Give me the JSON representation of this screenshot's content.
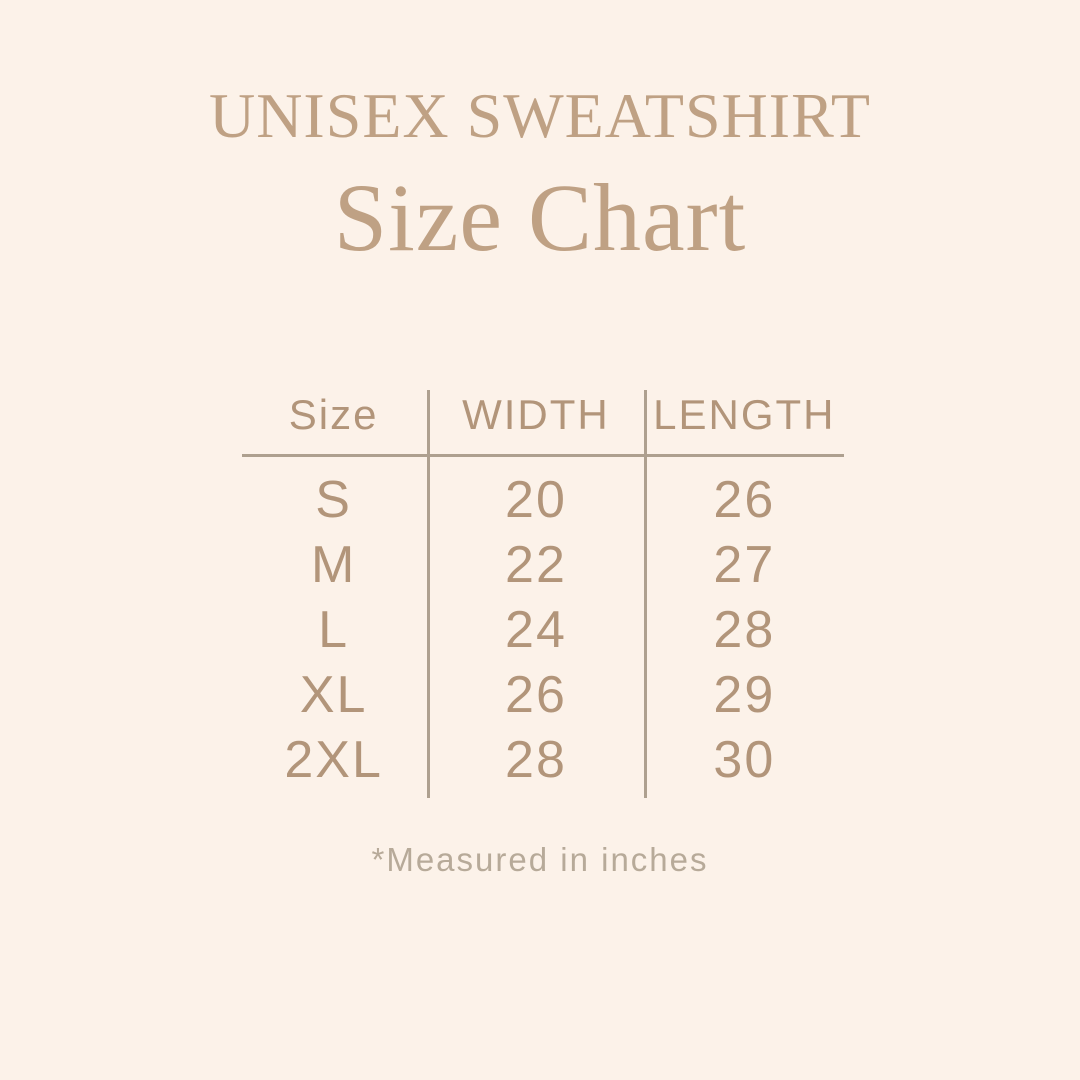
{
  "page": {
    "background_color": "#fcf2e9",
    "accent_color": "#bfa184",
    "table_text_color": "#b2957a",
    "line_color": "#aea08f",
    "footnote_color": "#b7aa99"
  },
  "header": {
    "title": "UNISEX SWEATSHIRT",
    "subtitle": "Size Chart"
  },
  "chart_data": {
    "type": "table",
    "title": "UNISEX SWEATSHIRT Size Chart",
    "columns": [
      "Size",
      "WIDTH",
      "LENGTH"
    ],
    "rows": [
      [
        "S",
        "20",
        "26"
      ],
      [
        "M",
        "22",
        "27"
      ],
      [
        "L",
        "24",
        "28"
      ],
      [
        "XL",
        "26",
        "29"
      ],
      [
        "2XL",
        "28",
        "30"
      ]
    ],
    "units": "inches",
    "footnote": "*Measured in inches"
  }
}
